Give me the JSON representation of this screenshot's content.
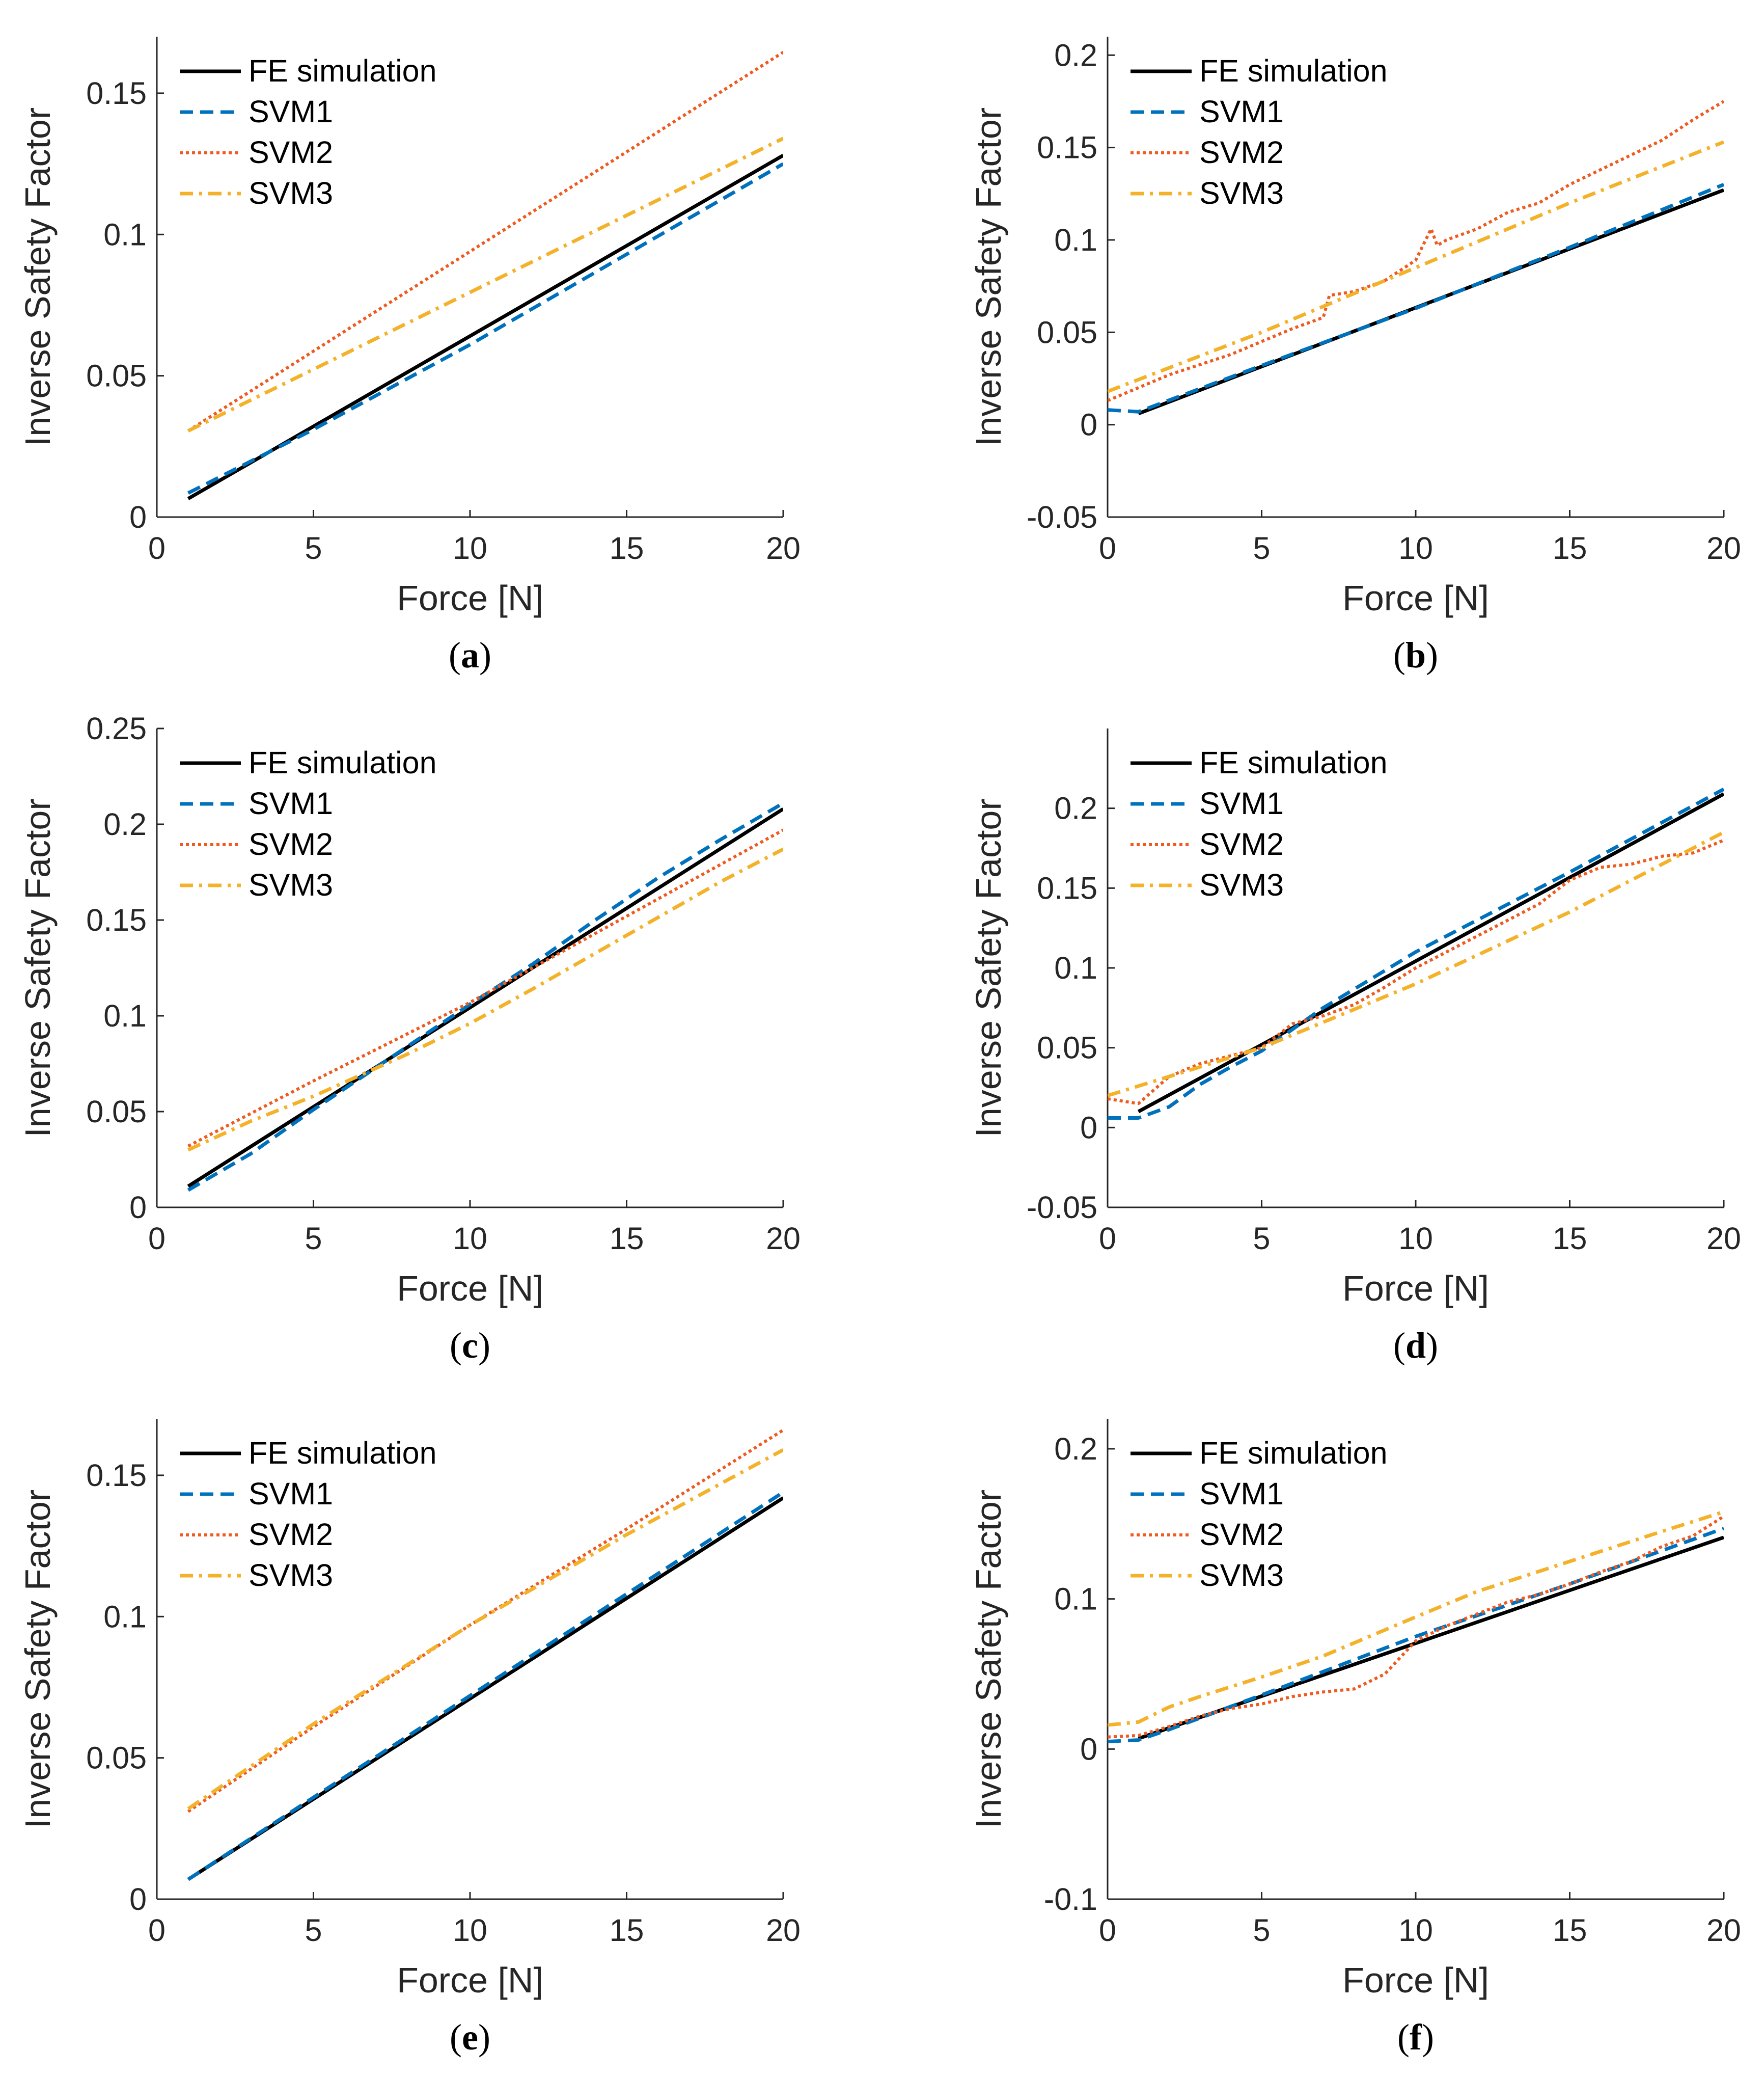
{
  "figure": {
    "colors": {
      "FE simulation": "#000000",
      "SVM1": "#0072BD",
      "SVM2": "#EE5A1F",
      "SVM3": "#F4B22A",
      "axis": "#262626"
    }
  },
  "chart_data": [
    {
      "id": "a",
      "caption_letter": "a",
      "type": "line",
      "xlabel": "Force [N]",
      "ylabel": "Inverse Safety Factor",
      "xlim": [
        0,
        20
      ],
      "ylim": [
        0,
        0.17
      ],
      "xticks": [
        0,
        5,
        10,
        15,
        20
      ],
      "yticks": [
        0,
        0.05,
        0.1,
        0.15
      ],
      "ytick_labels": [
        "0",
        "0.05",
        "0.1",
        "0.15"
      ],
      "legend_position": "top-left",
      "series": [
        {
          "name": "FE simulation",
          "style": "solid",
          "x": [
            1,
            20
          ],
          "y": [
            0.0065,
            0.128
          ]
        },
        {
          "name": "SVM1",
          "style": "dashed",
          "x": [
            1,
            5,
            10,
            15,
            20
          ],
          "y": [
            0.0085,
            0.031,
            0.061,
            0.093,
            0.125
          ]
        },
        {
          "name": "SVM2",
          "style": "dotted",
          "x": [
            1,
            20
          ],
          "y": [
            0.0305,
            0.1645
          ]
        },
        {
          "name": "SVM3",
          "style": "dashdot",
          "x": [
            1,
            20
          ],
          "y": [
            0.0305,
            0.134
          ]
        }
      ]
    },
    {
      "id": "b",
      "caption_letter": "b",
      "type": "line",
      "xlabel": "Force [N]",
      "ylabel": "Inverse Safety Factor",
      "xlim": [
        0,
        20
      ],
      "ylim": [
        -0.05,
        0.21
      ],
      "xticks": [
        0,
        5,
        10,
        15,
        20
      ],
      "yticks": [
        -0.05,
        0,
        0.05,
        0.1,
        0.15,
        0.2
      ],
      "ytick_labels": [
        "-0.05",
        "0",
        "0.05",
        "0.1",
        "0.15",
        "0.2"
      ],
      "legend_position": "top-left",
      "series": [
        {
          "name": "FE simulation",
          "style": "solid",
          "x": [
            1,
            20
          ],
          "y": [
            0.006,
            0.127
          ]
        },
        {
          "name": "SVM1",
          "style": "dashed",
          "x": [
            0,
            1,
            5,
            10,
            15,
            20
          ],
          "y": [
            0.008,
            0.007,
            0.032,
            0.063,
            0.096,
            0.13
          ]
        },
        {
          "name": "SVM2",
          "style": "dotted",
          "x": [
            0,
            2,
            4,
            5,
            6,
            7,
            7.2,
            8,
            9,
            10,
            10.5,
            10.7,
            11,
            12,
            13,
            14,
            15,
            16,
            17,
            18,
            19,
            20
          ],
          "y": [
            0.013,
            0.027,
            0.038,
            0.045,
            0.052,
            0.058,
            0.07,
            0.072,
            0.078,
            0.089,
            0.106,
            0.097,
            0.1,
            0.106,
            0.115,
            0.12,
            0.13,
            0.138,
            0.146,
            0.154,
            0.165,
            0.175
          ]
        },
        {
          "name": "SVM3",
          "style": "dashdot",
          "x": [
            0,
            5,
            10,
            15,
            20
          ],
          "y": [
            0.018,
            0.05,
            0.085,
            0.12,
            0.153
          ]
        }
      ]
    },
    {
      "id": "c",
      "caption_letter": "c",
      "type": "line",
      "xlabel": "Force [N]",
      "ylabel": "Inverse Safety Factor",
      "xlim": [
        0,
        20
      ],
      "ylim": [
        0,
        0.25
      ],
      "xticks": [
        0,
        5,
        10,
        15,
        20
      ],
      "yticks": [
        0,
        0.05,
        0.1,
        0.15,
        0.2,
        0.25
      ],
      "ytick_labels": [
        "0",
        "0.05",
        "0.1",
        "0.15",
        "0.2",
        "0.25"
      ],
      "legend_position": "top-left",
      "series": [
        {
          "name": "FE simulation",
          "style": "solid",
          "x": [
            1,
            20
          ],
          "y": [
            0.011,
            0.208
          ]
        },
        {
          "name": "SVM1",
          "style": "dashed",
          "x": [
            1,
            3,
            5,
            8,
            10,
            12,
            14,
            16,
            18,
            20
          ],
          "y": [
            0.009,
            0.028,
            0.051,
            0.084,
            0.106,
            0.127,
            0.15,
            0.172,
            0.192,
            0.211
          ]
        },
        {
          "name": "SVM2",
          "style": "dotted",
          "x": [
            1,
            5,
            10,
            15,
            20
          ],
          "y": [
            0.032,
            0.066,
            0.107,
            0.152,
            0.197
          ]
        },
        {
          "name": "SVM3",
          "style": "dashdot",
          "x": [
            1,
            3,
            5,
            8,
            10,
            12,
            15,
            18,
            20
          ],
          "y": [
            0.03,
            0.045,
            0.058,
            0.08,
            0.096,
            0.114,
            0.142,
            0.17,
            0.187
          ]
        }
      ]
    },
    {
      "id": "d",
      "caption_letter": "d",
      "type": "line",
      "xlabel": "Force [N]",
      "ylabel": "Inverse Safety Factor",
      "xlim": [
        0,
        20
      ],
      "ylim": [
        -0.05,
        0.25
      ],
      "xticks": [
        0,
        5,
        10,
        15,
        20
      ],
      "yticks": [
        -0.05,
        0,
        0.05,
        0.1,
        0.15,
        0.2
      ],
      "ytick_labels": [
        "-0.05",
        "0",
        "0.05",
        "0.1",
        "0.15",
        "0.2"
      ],
      "legend_position": "top-left",
      "series": [
        {
          "name": "FE simulation",
          "style": "solid",
          "x": [
            1,
            20
          ],
          "y": [
            0.01,
            0.209
          ]
        },
        {
          "name": "SVM1",
          "style": "dashed",
          "x": [
            0,
            1,
            2,
            3,
            4,
            5,
            7,
            10,
            15,
            20
          ],
          "y": [
            0.006,
            0.006,
            0.013,
            0.027,
            0.038,
            0.048,
            0.075,
            0.11,
            0.16,
            0.212
          ]
        },
        {
          "name": "SVM2",
          "style": "dotted",
          "x": [
            0,
            1,
            2,
            3,
            4,
            5,
            6,
            7,
            8,
            9,
            10,
            11,
            12,
            13,
            14,
            15,
            16,
            17,
            18,
            19,
            20
          ],
          "y": [
            0.018,
            0.015,
            0.032,
            0.04,
            0.045,
            0.05,
            0.065,
            0.07,
            0.077,
            0.088,
            0.1,
            0.11,
            0.12,
            0.13,
            0.14,
            0.155,
            0.163,
            0.165,
            0.17,
            0.172,
            0.18
          ]
        },
        {
          "name": "SVM3",
          "style": "dashdot",
          "x": [
            0,
            5,
            10,
            15,
            20
          ],
          "y": [
            0.02,
            0.05,
            0.09,
            0.135,
            0.185
          ]
        }
      ]
    },
    {
      "id": "e",
      "caption_letter": "e",
      "type": "line",
      "xlabel": "Force [N]",
      "ylabel": "Inverse Safety Factor",
      "xlim": [
        0,
        20
      ],
      "ylim": [
        0,
        0.17
      ],
      "xticks": [
        0,
        5,
        10,
        15,
        20
      ],
      "yticks": [
        0,
        0.05,
        0.1,
        0.15
      ],
      "ytick_labels": [
        "0",
        "0.05",
        "0.1",
        "0.15"
      ],
      "legend_position": "top-left",
      "series": [
        {
          "name": "FE simulation",
          "style": "solid",
          "x": [
            1,
            20
          ],
          "y": [
            0.007,
            0.142
          ]
        },
        {
          "name": "SVM1",
          "style": "dashed",
          "x": [
            1,
            5,
            10,
            15,
            20
          ],
          "y": [
            0.007,
            0.036,
            0.072,
            0.108,
            0.144
          ]
        },
        {
          "name": "SVM2",
          "style": "dotted",
          "x": [
            1,
            5,
            10,
            15,
            20
          ],
          "y": [
            0.031,
            0.061,
            0.097,
            0.131,
            0.166
          ]
        },
        {
          "name": "SVM3",
          "style": "dashdot",
          "x": [
            1,
            5,
            10,
            15,
            20
          ],
          "y": [
            0.032,
            0.062,
            0.097,
            0.129,
            0.159
          ]
        }
      ]
    },
    {
      "id": "f",
      "caption_letter": "f",
      "type": "line",
      "xlabel": "Force [N]",
      "ylabel": "Inverse Safety Factor",
      "xlim": [
        0,
        20
      ],
      "ylim": [
        -0.1,
        0.22
      ],
      "xticks": [
        0,
        5,
        10,
        15,
        20
      ],
      "yticks": [
        -0.1,
        0,
        0.1,
        0.2
      ],
      "ytick_labels": [
        "-0.1",
        "0",
        "0.1",
        "0.2"
      ],
      "legend_position": "top-left",
      "series": [
        {
          "name": "FE simulation",
          "style": "solid",
          "x": [
            1,
            20
          ],
          "y": [
            0.007,
            0.141
          ]
        },
        {
          "name": "SVM1",
          "style": "dashed",
          "x": [
            0,
            1,
            2,
            5,
            10,
            15,
            20
          ],
          "y": [
            0.005,
            0.006,
            0.013,
            0.036,
            0.075,
            0.11,
            0.147
          ]
        },
        {
          "name": "SVM2",
          "style": "dotted",
          "x": [
            0,
            1,
            2,
            3,
            4,
            5,
            6,
            7,
            8,
            9,
            10,
            11,
            12,
            13,
            14,
            15,
            16,
            17,
            18,
            19,
            20
          ],
          "y": [
            0.008,
            0.009,
            0.015,
            0.022,
            0.027,
            0.03,
            0.035,
            0.038,
            0.04,
            0.05,
            0.072,
            0.082,
            0.09,
            0.098,
            0.103,
            0.11,
            0.118,
            0.125,
            0.135,
            0.142,
            0.155
          ]
        },
        {
          "name": "SVM3",
          "style": "dashdot",
          "x": [
            0,
            1,
            2,
            3,
            5,
            7,
            10,
            12,
            15,
            18,
            20
          ],
          "y": [
            0.016,
            0.018,
            0.028,
            0.035,
            0.048,
            0.062,
            0.088,
            0.105,
            0.125,
            0.145,
            0.158
          ]
        }
      ]
    }
  ]
}
